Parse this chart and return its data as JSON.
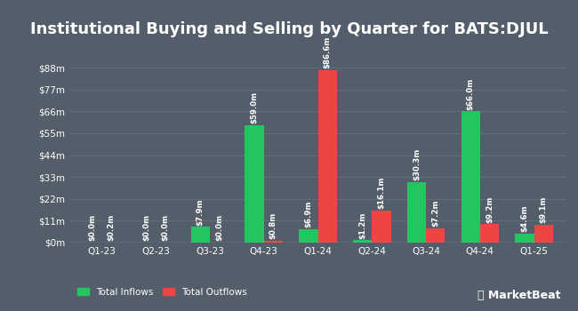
{
  "title": "Institutional Buying and Selling by Quarter for BATS:DJUL",
  "quarters": [
    "Q1-23",
    "Q2-23",
    "Q3-23",
    "Q4-23",
    "Q1-24",
    "Q2-24",
    "Q3-24",
    "Q4-24",
    "Q1-25"
  ],
  "inflows": [
    0.0,
    0.0,
    7.9,
    59.0,
    6.9,
    1.2,
    30.3,
    66.0,
    4.6
  ],
  "outflows": [
    0.2,
    0.0,
    0.0,
    0.8,
    86.6,
    16.1,
    7.2,
    9.2,
    9.1
  ],
  "inflow_labels": [
    "$0.0m",
    "$0.0m",
    "$7.9m",
    "$59.0m",
    "$6.9m",
    "$1.2m",
    "$30.3m",
    "$66.0m",
    "$4.6m"
  ],
  "outflow_labels": [
    "$0.2m",
    "$0.0m",
    "$0.0m",
    "$0.8m",
    "$86.6m",
    "$16.1m",
    "$7.2m",
    "$9.2m",
    "$9.1m"
  ],
  "inflow_color": "#22c55e",
  "outflow_color": "#ef4444",
  "bg_color": "#545e6b",
  "plot_bg_color": "#545e6b",
  "text_color": "#ffffff",
  "grid_color": "#666f7b",
  "bar_width": 0.35,
  "ylim": [
    0,
    97
  ],
  "yticks": [
    0,
    11,
    22,
    33,
    44,
    55,
    66,
    77,
    88
  ],
  "ytick_labels": [
    "$0m",
    "$11m",
    "$22m",
    "$33m",
    "$44m",
    "$55m",
    "$66m",
    "$77m",
    "$88m"
  ],
  "legend_inflow": "Total Inflows",
  "legend_outflow": "Total Outflows",
  "title_fontsize": 13,
  "label_fontsize": 6.2,
  "tick_fontsize": 7.5,
  "legend_fontsize": 7.5,
  "marketbeat_fontsize": 9
}
